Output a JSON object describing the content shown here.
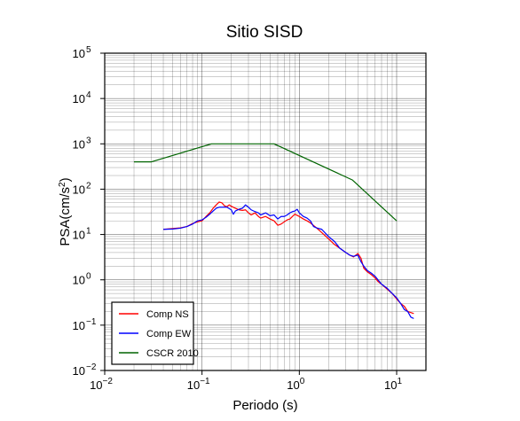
{
  "chart_data": {
    "type": "line",
    "title": "Sitio SISD",
    "xlabel": "Periodo (s)",
    "ylabel_base": "PSA(cm/s",
    "ylabel_sup": "2",
    "ylabel_tail": ")",
    "x_scale": "log",
    "y_scale": "log",
    "xlim": [
      0.01,
      20
    ],
    "ylim": [
      0.01,
      100000
    ],
    "grid": true,
    "legend_position": "bottom-left",
    "x_ticks": [
      {
        "base": "10",
        "exp": "−2",
        "value": 0.01
      },
      {
        "base": "10",
        "exp": "−1",
        "value": 0.1
      },
      {
        "base": "10",
        "exp": "0",
        "value": 1
      },
      {
        "base": "10",
        "exp": "1",
        "value": 10
      }
    ],
    "y_ticks": [
      {
        "base": "10",
        "exp": "−2",
        "value": 0.01
      },
      {
        "base": "10",
        "exp": "−1",
        "value": 0.1
      },
      {
        "base": "10",
        "exp": "0",
        "value": 1
      },
      {
        "base": "10",
        "exp": "1",
        "value": 10
      },
      {
        "base": "10",
        "exp": "2",
        "value": 100
      },
      {
        "base": "10",
        "exp": "3",
        "value": 1000
      },
      {
        "base": "10",
        "exp": "4",
        "value": 10000
      },
      {
        "base": "10",
        "exp": "5",
        "value": 100000
      }
    ],
    "series": [
      {
        "name": "Comp NS",
        "color": "#ff0000",
        "points": [
          [
            0.04,
            13
          ],
          [
            0.05,
            13.5
          ],
          [
            0.06,
            14
          ],
          [
            0.07,
            15
          ],
          [
            0.08,
            17.5
          ],
          [
            0.09,
            19
          ],
          [
            0.1,
            20
          ],
          [
            0.11,
            25
          ],
          [
            0.12,
            30
          ],
          [
            0.13,
            38
          ],
          [
            0.14,
            45
          ],
          [
            0.15,
            52
          ],
          [
            0.16,
            50
          ],
          [
            0.17,
            43
          ],
          [
            0.18,
            41
          ],
          [
            0.19,
            45
          ],
          [
            0.2,
            42
          ],
          [
            0.22,
            38
          ],
          [
            0.24,
            35
          ],
          [
            0.26,
            34
          ],
          [
            0.28,
            35
          ],
          [
            0.3,
            30
          ],
          [
            0.32,
            27
          ],
          [
            0.35,
            30
          ],
          [
            0.38,
            25
          ],
          [
            0.4,
            23
          ],
          [
            0.45,
            25
          ],
          [
            0.5,
            22
          ],
          [
            0.55,
            20
          ],
          [
            0.6,
            16
          ],
          [
            0.65,
            17
          ],
          [
            0.7,
            19
          ],
          [
            0.75,
            21
          ],
          [
            0.8,
            22
          ],
          [
            0.85,
            25
          ],
          [
            0.9,
            28
          ],
          [
            1.0,
            25
          ],
          [
            1.1,
            22
          ],
          [
            1.2,
            20
          ],
          [
            1.3,
            18
          ],
          [
            1.5,
            14
          ],
          [
            1.7,
            11
          ],
          [
            2.0,
            8
          ],
          [
            2.3,
            6
          ],
          [
            2.6,
            5
          ],
          [
            3.0,
            4
          ],
          [
            3.3,
            3.5
          ],
          [
            3.6,
            3.2
          ],
          [
            4.0,
            3.8
          ],
          [
            4.3,
            3.0
          ],
          [
            4.6,
            1.8
          ],
          [
            5.0,
            1.5
          ],
          [
            5.5,
            1.3
          ],
          [
            6.0,
            1.1
          ],
          [
            6.5,
            0.9
          ],
          [
            7.0,
            0.8
          ],
          [
            8.0,
            0.62
          ],
          [
            9.0,
            0.5
          ],
          [
            10.0,
            0.38
          ],
          [
            11.0,
            0.3
          ],
          [
            12.0,
            0.26
          ],
          [
            13.0,
            0.2
          ],
          [
            15.0,
            0.18
          ]
        ]
      },
      {
        "name": "Comp EW",
        "color": "#0000ff",
        "points": [
          [
            0.04,
            13
          ],
          [
            0.05,
            13.2
          ],
          [
            0.06,
            13.8
          ],
          [
            0.07,
            15
          ],
          [
            0.08,
            17
          ],
          [
            0.09,
            20
          ],
          [
            0.1,
            21
          ],
          [
            0.11,
            24
          ],
          [
            0.12,
            28
          ],
          [
            0.13,
            33
          ],
          [
            0.14,
            38
          ],
          [
            0.15,
            40
          ],
          [
            0.16,
            40
          ],
          [
            0.18,
            40
          ],
          [
            0.2,
            35
          ],
          [
            0.21,
            28
          ],
          [
            0.22,
            33
          ],
          [
            0.24,
            36
          ],
          [
            0.26,
            38
          ],
          [
            0.28,
            45
          ],
          [
            0.3,
            40
          ],
          [
            0.32,
            35
          ],
          [
            0.35,
            32
          ],
          [
            0.38,
            30
          ],
          [
            0.4,
            27
          ],
          [
            0.45,
            30
          ],
          [
            0.5,
            26
          ],
          [
            0.55,
            27
          ],
          [
            0.6,
            22
          ],
          [
            0.65,
            25
          ],
          [
            0.7,
            25
          ],
          [
            0.75,
            27
          ],
          [
            0.8,
            30
          ],
          [
            0.85,
            32
          ],
          [
            0.9,
            33
          ],
          [
            0.95,
            36
          ],
          [
            1.0,
            30
          ],
          [
            1.1,
            25
          ],
          [
            1.2,
            23
          ],
          [
            1.3,
            20
          ],
          [
            1.4,
            15
          ],
          [
            1.5,
            14
          ],
          [
            1.7,
            13
          ],
          [
            2.0,
            9
          ],
          [
            2.3,
            7
          ],
          [
            2.6,
            5
          ],
          [
            3.0,
            4
          ],
          [
            3.3,
            3.5
          ],
          [
            3.6,
            3.3
          ],
          [
            4.0,
            3.5
          ],
          [
            4.3,
            2.5
          ],
          [
            4.6,
            2.0
          ],
          [
            5.0,
            1.6
          ],
          [
            5.5,
            1.4
          ],
          [
            6.0,
            1.2
          ],
          [
            7.0,
            0.8
          ],
          [
            8.0,
            0.65
          ],
          [
            9.0,
            0.5
          ],
          [
            10.0,
            0.4
          ],
          [
            11.0,
            0.3
          ],
          [
            12.0,
            0.22
          ],
          [
            13.0,
            0.2
          ],
          [
            14.0,
            0.15
          ],
          [
            15.0,
            0.14
          ]
        ]
      },
      {
        "name": "CSCR 2010",
        "color": "#006400",
        "points": [
          [
            0.02,
            400
          ],
          [
            0.03,
            400
          ],
          [
            0.125,
            1000
          ],
          [
            0.55,
            1000
          ],
          [
            3.5,
            160
          ],
          [
            10.0,
            20
          ]
        ]
      }
    ]
  }
}
